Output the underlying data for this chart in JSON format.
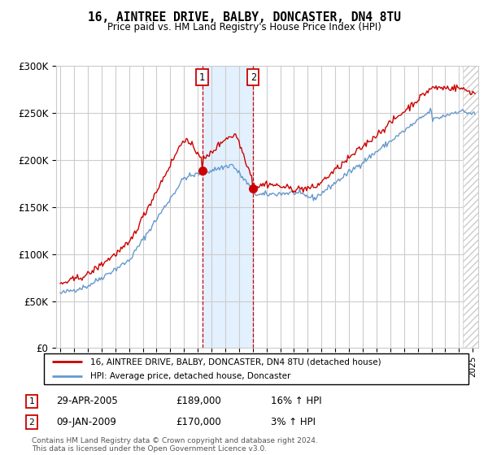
{
  "title1": "16, AINTREE DRIVE, BALBY, DONCASTER, DN4 8TU",
  "title2": "Price paid vs. HM Land Registry's House Price Index (HPI)",
  "ylabel_ticks": [
    "£0",
    "£50K",
    "£100K",
    "£150K",
    "£200K",
    "£250K",
    "£300K"
  ],
  "ytick_vals": [
    0,
    50000,
    100000,
    150000,
    200000,
    250000,
    300000
  ],
  "ylim": [
    0,
    300000
  ],
  "xlim_start": 1994.7,
  "xlim_end": 2025.4,
  "hpi_color": "#6699cc",
  "price_color": "#cc0000",
  "sale1_x": 2005.32,
  "sale1_y": 189000,
  "sale1_label": "1",
  "sale1_date": "29-APR-2005",
  "sale1_price": "£189,000",
  "sale1_hpi": "16% ↑ HPI",
  "sale2_x": 2009.03,
  "sale2_y": 170000,
  "sale2_label": "2",
  "sale2_date": "09-JAN-2009",
  "sale2_price": "£170,000",
  "sale2_hpi": "3% ↑ HPI",
  "legend1_text": "16, AINTREE DRIVE, BALBY, DONCASTER, DN4 8TU (detached house)",
  "legend2_text": "HPI: Average price, detached house, Doncaster",
  "footnote": "Contains HM Land Registry data © Crown copyright and database right 2024.\nThis data is licensed under the Open Government Licence v3.0.",
  "background_color": "#ffffff",
  "grid_color": "#cccccc",
  "shade_color": "#ddeeff",
  "hatch_color": "#cccccc",
  "future_start": 2024.25
}
